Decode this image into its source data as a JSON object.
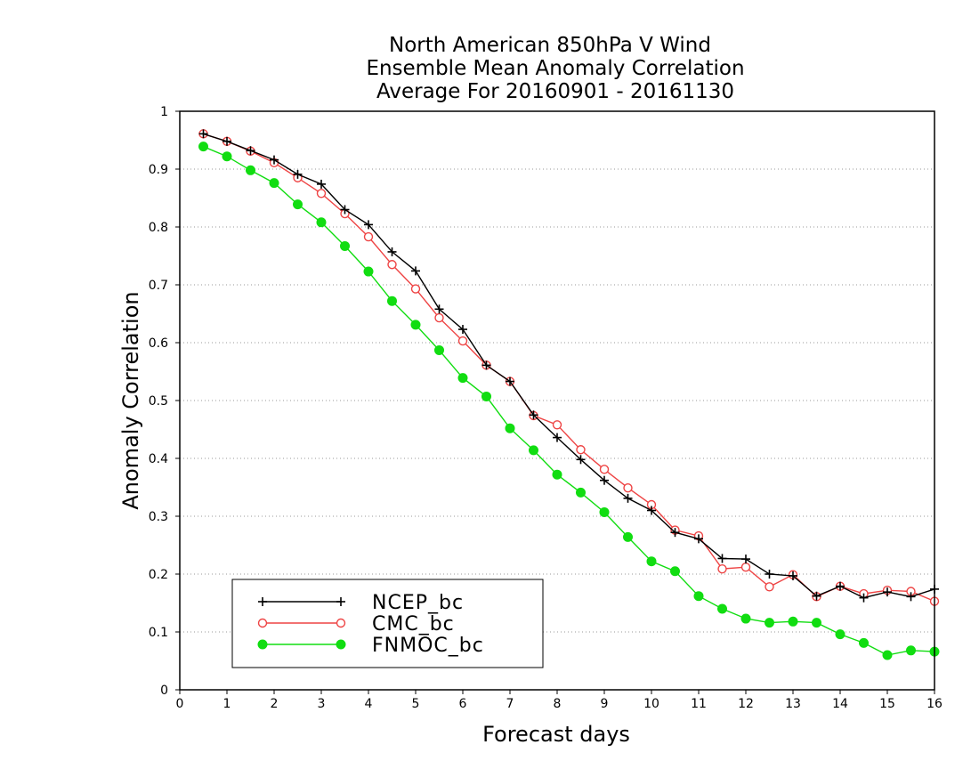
{
  "chart_data": {
    "type": "line",
    "title": [
      "North American 850hPa V Wind",
      "Ensemble Mean Anomaly Correlation",
      "Average For 20160901 - 20161130"
    ],
    "xlabel": "Forecast days",
    "ylabel": "Anomaly Correlation",
    "xlim": [
      0,
      16
    ],
    "ylim": [
      0,
      1
    ],
    "x_ticks": [
      "0",
      "1",
      "2",
      "3",
      "4",
      "5",
      "6",
      "7",
      "8",
      "9",
      "10",
      "11",
      "12",
      "13",
      "14",
      "15",
      "16"
    ],
    "y_ticks": [
      "0",
      "0.1",
      "0.2",
      "0.3",
      "0.4",
      "0.5",
      "0.6",
      "0.7",
      "0.8",
      "0.9",
      "1"
    ],
    "grid": "horizontal dotted",
    "legend_position": "bottom-left",
    "x": [
      0.5,
      1,
      1.5,
      2,
      2.5,
      3,
      3.5,
      4,
      4.5,
      5,
      5.5,
      6,
      6.5,
      7,
      7.5,
      8,
      8.5,
      9,
      9.5,
      10,
      10.5,
      11,
      11.5,
      12,
      12.5,
      13,
      13.5,
      14,
      14.5,
      15,
      15.5,
      16
    ],
    "series": [
      {
        "name": "NCEP_bc",
        "color": "#000000",
        "marker": "plus",
        "values": [
          0.961,
          0.948,
          0.932,
          0.916,
          0.891,
          0.874,
          0.83,
          0.804,
          0.757,
          0.724,
          0.658,
          0.623,
          0.561,
          0.533,
          0.475,
          0.436,
          0.398,
          0.362,
          0.331,
          0.31,
          0.272,
          0.261,
          0.227,
          0.226,
          0.2,
          0.197,
          0.162,
          0.179,
          0.159,
          0.169,
          0.161,
          0.174
        ]
      },
      {
        "name": "CMC_bc",
        "color": "#ee4444",
        "marker": "open-circle",
        "values": [
          0.961,
          0.948,
          0.931,
          0.911,
          0.885,
          0.858,
          0.823,
          0.783,
          0.735,
          0.693,
          0.643,
          0.603,
          0.561,
          0.533,
          0.474,
          0.458,
          0.415,
          0.381,
          0.349,
          0.32,
          0.276,
          0.266,
          0.209,
          0.212,
          0.178,
          0.199,
          0.161,
          0.179,
          0.166,
          0.172,
          0.17,
          0.153
        ]
      },
      {
        "name": "FNMOC_bc",
        "color": "#11dd11",
        "marker": "filled-circle",
        "values": [
          0.939,
          0.922,
          0.898,
          0.876,
          0.839,
          0.808,
          0.767,
          0.723,
          0.672,
          0.631,
          0.587,
          0.539,
          0.507,
          0.452,
          0.414,
          0.372,
          0.341,
          0.307,
          0.264,
          0.222,
          0.205,
          0.162,
          0.14,
          0.123,
          0.116,
          0.118,
          0.116,
          0.096,
          0.081,
          0.06,
          0.068,
          0.066
        ]
      }
    ]
  }
}
